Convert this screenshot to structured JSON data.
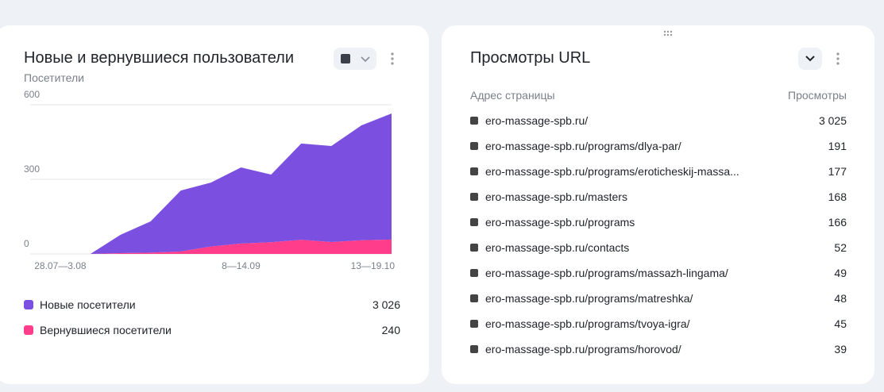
{
  "chart_data": {
    "type": "stacked-area",
    "title": "Новые и вернувшиеся пользователи",
    "subtitle": "Посетители",
    "categories": [
      null,
      "28.07—3.08",
      null,
      null,
      null,
      null,
      null,
      "8—14.09",
      null,
      null,
      null,
      null,
      "13—19.10"
    ],
    "series": [
      {
        "name": "Новые посетители",
        "color": "#7b4fe0",
        "values": [
          0,
          0,
          0,
          74,
          126,
          245,
          257,
          306,
          272,
          387,
          386,
          462,
          507
        ],
        "total": {
          "value": 3026,
          "label": "3 026"
        }
      },
      {
        "name": "Вернувшиеся посетители",
        "color": "#ff3d8b",
        "values": [
          0,
          0,
          0,
          3,
          5,
          10,
          30,
          42,
          47,
          57,
          48,
          55,
          58
        ],
        "total": {
          "value": 240,
          "label": "240"
        }
      }
    ],
    "ylim": [
      0,
      600
    ],
    "yticks": [
      0,
      300,
      600
    ],
    "grid": true
  },
  "table": {
    "title": "Просмотры URL",
    "header": [
      "Адрес страницы",
      "Просмотры"
    ],
    "rows": [
      [
        "ero-massage-spb.ru/",
        "3 025"
      ],
      [
        "ero-massage-spb.ru/programs/dlya-par/",
        191
      ],
      [
        "ero-massage-spb.ru/programs/eroticheskij-massa...",
        177
      ],
      [
        "ero-massage-spb.ru/masters",
        168
      ],
      [
        "ero-massage-spb.ru/programs",
        166
      ],
      [
        "ero-massage-spb.ru/contacts",
        52
      ],
      [
        "ero-massage-spb.ru/programs/massazh-lingama/",
        49
      ],
      [
        "ero-massage-spb.ru/programs/matreshka/",
        48
      ],
      [
        "ero-massage-spb.ru/programs/tvoya-igra/",
        45
      ],
      [
        "ero-massage-spb.ru/programs/horovod/",
        39
      ]
    ]
  }
}
